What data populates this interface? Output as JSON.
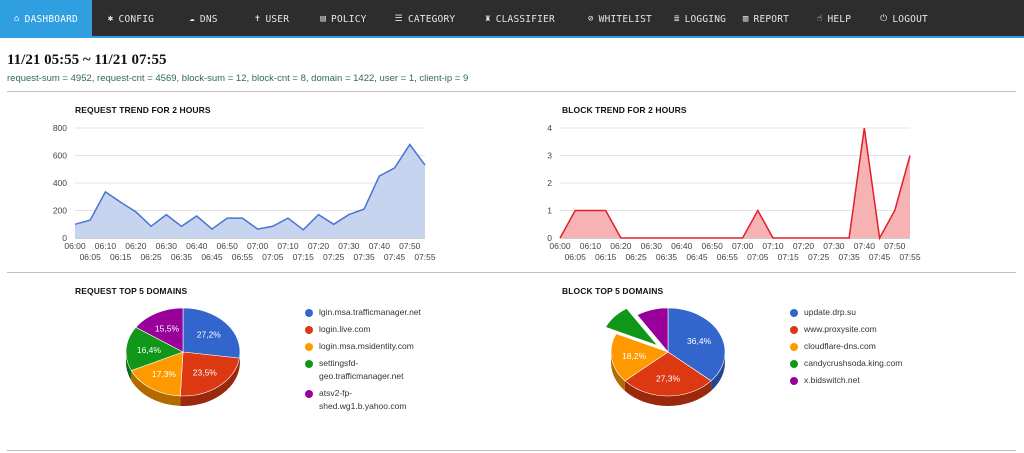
{
  "nav": {
    "items": [
      {
        "label": "DASHBOARD",
        "icon": "home-icon",
        "glyph": "⌂",
        "active": true
      },
      {
        "label": "CONFIG",
        "icon": "gear-icon",
        "glyph": "✱"
      },
      {
        "label": "DNS",
        "icon": "cloud-icon",
        "glyph": "☁"
      },
      {
        "label": "USER",
        "icon": "user-icon",
        "glyph": "✝"
      },
      {
        "label": "POLICY",
        "icon": "book-icon",
        "glyph": "▤"
      },
      {
        "label": "CATEGORY",
        "icon": "list-icon",
        "glyph": "☰"
      },
      {
        "label": "CLASSIFIER",
        "icon": "robot-icon",
        "glyph": "♜"
      },
      {
        "label": "WHITELIST",
        "icon": "check-circle-icon",
        "glyph": "⊘"
      },
      {
        "label": "LOGGING",
        "icon": "database-icon",
        "glyph": "≣"
      },
      {
        "label": "REPORT",
        "icon": "bar-chart-icon",
        "glyph": "▥"
      },
      {
        "label": "HELP",
        "icon": "hand-icon",
        "glyph": "☝"
      },
      {
        "label": "LOGOUT",
        "icon": "power-icon",
        "glyph": "⏻"
      }
    ],
    "colors": {
      "bar": "#2d2d2d",
      "active": "#2f9fe0"
    }
  },
  "header": {
    "title": "11/21 05:55 ~ 11/21 07:55",
    "summary": "request-sum = 4952, request-cnt = 4569, block-sum = 12, block-cnt = 8, domain = 1422, user = 1, client-ip = 9"
  },
  "sections": {
    "request_trend_title": "REQUEST TREND FOR 2 HOURS",
    "block_trend_title": "BLOCK TREND FOR 2 HOURS",
    "request_top_title": "REQUEST TOP 5 DOMAINS",
    "block_top_title": "BLOCK TOP 5 DOMAINS"
  },
  "chart_data": [
    {
      "type": "area",
      "title": "REQUEST TREND FOR 2 HOURS",
      "x": [
        "06:00",
        "06:05",
        "06:10",
        "06:15",
        "06:20",
        "06:25",
        "06:30",
        "06:35",
        "06:40",
        "06:45",
        "06:50",
        "06:55",
        "07:00",
        "07:05",
        "07:10",
        "07:15",
        "07:20",
        "07:25",
        "07:30",
        "07:35",
        "07:40",
        "07:45",
        "07:50",
        "07:55"
      ],
      "x_ticks_top": [
        "06:00",
        "06:10",
        "06:20",
        "06:30",
        "06:40",
        "06:50",
        "07:00",
        "07:10",
        "07:20",
        "07:30",
        "07:40",
        "07:50"
      ],
      "x_ticks_bottom": [
        "06:05",
        "06:15",
        "06:25",
        "06:35",
        "06:45",
        "06:55",
        "07:05",
        "07:15",
        "07:25",
        "07:35",
        "07:45",
        "07:55"
      ],
      "values": [
        100,
        130,
        335,
        260,
        190,
        85,
        170,
        85,
        160,
        65,
        145,
        145,
        65,
        85,
        145,
        60,
        170,
        100,
        170,
        210,
        450,
        510,
        680,
        530
      ],
      "ylim": [
        0,
        800
      ],
      "yticks": [
        0,
        200,
        400,
        600,
        800
      ],
      "line_color": "#4a74d4",
      "fill_color": "#c6d4f0",
      "grid": true
    },
    {
      "type": "area",
      "title": "BLOCK TREND FOR 2 HOURS",
      "x": [
        "06:00",
        "06:05",
        "06:10",
        "06:15",
        "06:20",
        "06:25",
        "06:30",
        "06:35",
        "06:40",
        "06:45",
        "06:50",
        "06:55",
        "07:00",
        "07:05",
        "07:10",
        "07:15",
        "07:20",
        "07:25",
        "07:30",
        "07:35",
        "07:40",
        "07:45",
        "07:50",
        "07:55"
      ],
      "x_ticks_top": [
        "06:00",
        "06:10",
        "06:20",
        "06:30",
        "06:40",
        "06:50",
        "07:00",
        "07:10",
        "07:20",
        "07:30",
        "07:40",
        "07:50"
      ],
      "x_ticks_bottom": [
        "06:05",
        "06:15",
        "06:25",
        "06:35",
        "06:45",
        "06:55",
        "07:05",
        "07:15",
        "07:25",
        "07:35",
        "07:45",
        "07:55"
      ],
      "values": [
        0,
        1,
        1,
        1,
        0,
        0,
        0,
        0,
        0,
        0,
        0,
        0,
        0,
        1,
        0,
        0,
        0,
        0,
        0,
        0,
        4,
        0,
        1,
        3
      ],
      "ylim": [
        0,
        4
      ],
      "yticks": [
        0,
        1,
        2,
        3,
        4
      ],
      "line_color": "#e0202a",
      "fill_color": "#f7b2b4",
      "grid": true
    },
    {
      "type": "pie",
      "title": "REQUEST TOP 5 DOMAINS",
      "labels": [
        "lgin.msa.trafficmanager.net",
        "login.live.com",
        "login.msa.msidentity.com",
        "settingsfd-geo.trafficmanager.net",
        "atsv2-fp-shed.wg1.b.yahoo.com"
      ],
      "legend_lines": [
        [
          "lgin.msa.trafficmanager.net"
        ],
        [
          "login.live.com"
        ],
        [
          "login.msa.msidentity.com"
        ],
        [
          "settingsfd-",
          "geo.trafficmanager.net"
        ],
        [
          "atsv2-fp-",
          "shed.wg1.b.yahoo.com"
        ]
      ],
      "values": [
        27.2,
        23.5,
        17.3,
        16.4,
        15.5
      ],
      "data_labels": [
        "27,2%",
        "23,5%",
        "17,3%",
        "16,4%",
        "15,5%"
      ],
      "colors": [
        "#3366cc",
        "#dc3912",
        "#ff9900",
        "#109618",
        "#990099"
      ],
      "legend": "right"
    },
    {
      "type": "pie",
      "title": "BLOCK TOP 5 DOMAINS",
      "labels": [
        "update.drp.su",
        "www.proxysite.com",
        "cloudflare-dns.com",
        "candycrushsoda.king.com",
        "x.bidswitch.net"
      ],
      "legend_lines": [
        [
          "update.drp.su"
        ],
        [
          "www.proxysite.com"
        ],
        [
          "cloudflare-dns.com"
        ],
        [
          "candycrushsoda.king.com"
        ],
        [
          "x.bidswitch.net"
        ]
      ],
      "values": [
        36.4,
        27.3,
        18.2,
        9.1,
        9.1
      ],
      "data_labels": [
        "36,4%",
        "27,3%",
        "18,2%",
        "",
        ""
      ],
      "exploded": [
        false,
        false,
        false,
        true,
        false
      ],
      "colors": [
        "#3366cc",
        "#dc3912",
        "#ff9900",
        "#109618",
        "#990099"
      ],
      "legend": "right"
    }
  ]
}
